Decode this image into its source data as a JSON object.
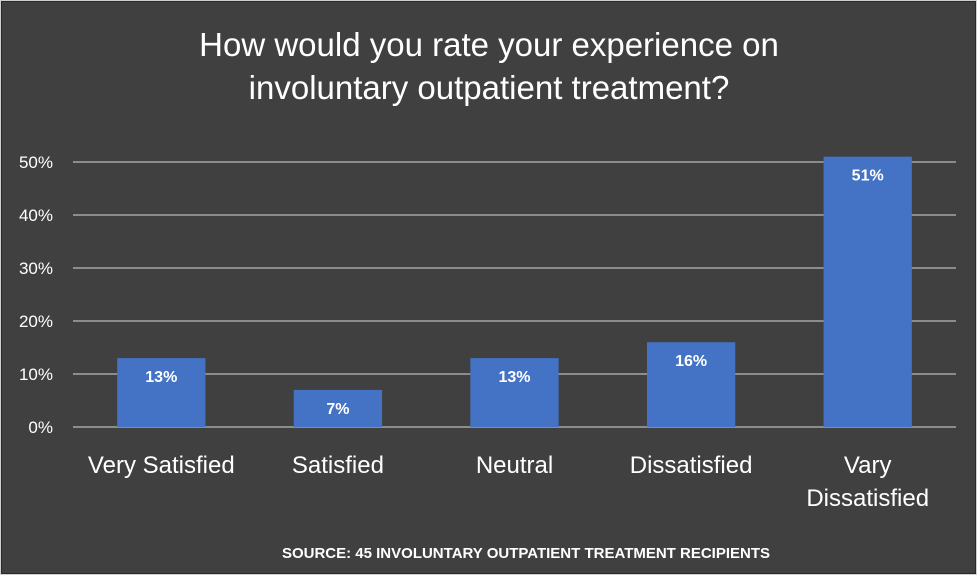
{
  "chart_data": {
    "type": "bar",
    "title_lines": [
      "How would you rate your experience on",
      "involuntary outpatient treatment?"
    ],
    "categories": [
      [
        "Very Satisfied"
      ],
      [
        "Satisfied"
      ],
      [
        "Neutral"
      ],
      [
        "Dissatisfied"
      ],
      [
        "Vary",
        "Dissatisfied"
      ]
    ],
    "values": [
      13,
      7,
      13,
      16,
      51
    ],
    "data_labels": [
      "13%",
      "7%",
      "13%",
      "16%",
      "51%"
    ],
    "y_ticks": [
      0,
      10,
      20,
      30,
      40,
      50
    ],
    "y_tick_labels": [
      "0%",
      "10%",
      "20%",
      "30%",
      "40%",
      "50%"
    ],
    "ylim": [
      0,
      50
    ],
    "grid": true,
    "legend": "none",
    "footnote": "SOURCE: 45 INVOLUNTARY OUTPATIENT TREATMENT RECIPIENTS",
    "colors": {
      "background": "#404040",
      "bar": "#4472c4",
      "gridline": "#d9d9d9",
      "text": "#ffffff"
    }
  }
}
